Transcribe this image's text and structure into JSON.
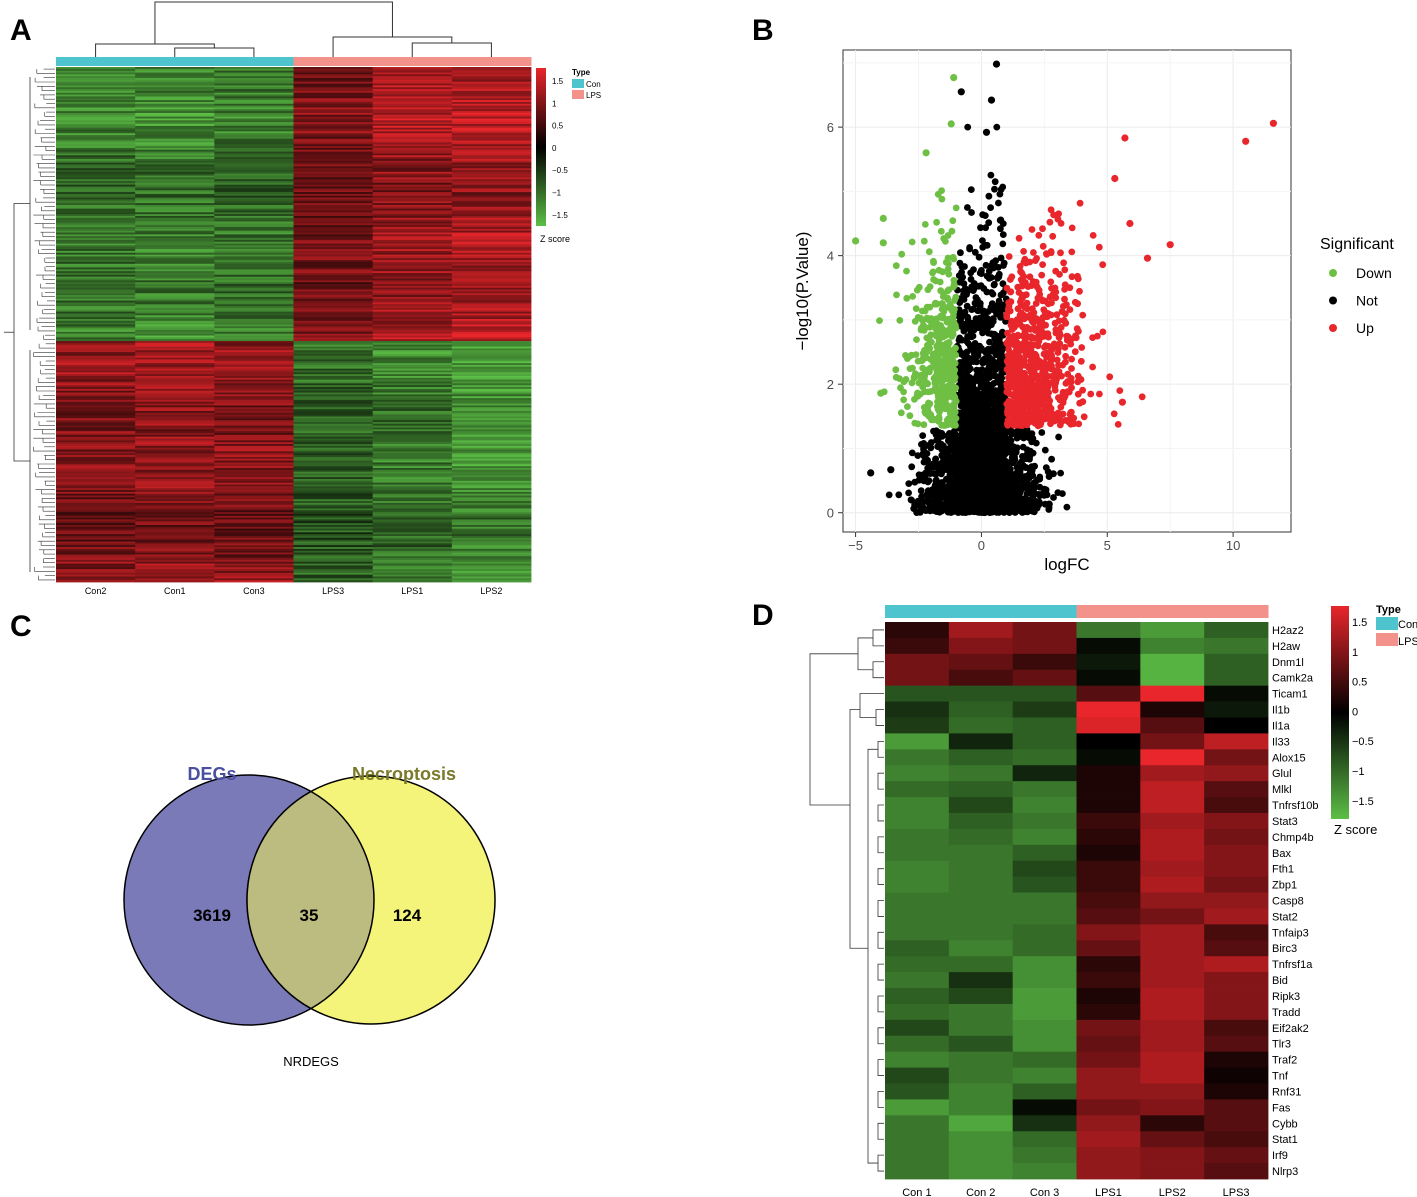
{
  "figure": {
    "panel_letters": [
      "A",
      "B",
      "C",
      "D"
    ]
  },
  "colors": {
    "con": "#4ec4cf",
    "lps": "#f2928a",
    "high": "#e8262b",
    "mid": "#000000",
    "low": "#5cbf46",
    "venn_left": "#7a7ab9",
    "venn_right": "#f4f47a",
    "venn_overlap": "#bcbb80",
    "degs_title": "#4a4fa0",
    "necro_title": "#7a7a2a",
    "down": "#6ebf44",
    "not": "#000000",
    "up": "#e8262b"
  },
  "chart_data": [
    {
      "panel": "A",
      "type": "heatmap",
      "columns": [
        "Con2",
        "Con1",
        "Con3",
        "LPS3",
        "LPS1",
        "LPS2"
      ],
      "column_groups": [
        "Con",
        "Con",
        "Con",
        "LPS",
        "LPS",
        "LPS"
      ],
      "row_blocks": [
        {
          "label": "up-regulated cluster",
          "pattern": [
            -1.1,
            -1.2,
            -1.1,
            0.9,
            1.2,
            1.3
          ]
        },
        {
          "label": "down-regulated cluster",
          "pattern": [
            1.0,
            1.1,
            1.0,
            -0.9,
            -1.1,
            -1.3
          ]
        }
      ],
      "legend": {
        "title": "Type",
        "entries": [
          "Con",
          "LPS"
        ],
        "scale_ticks": [
          "1.5",
          "1",
          "0.5",
          "0",
          "−0.5",
          "−1",
          "−1.5"
        ],
        "scale_title": "Z score"
      }
    },
    {
      "panel": "B",
      "type": "scatter",
      "xlabel": "logFC",
      "ylabel": "−log10(P.Value)",
      "xlim": [
        -5.5,
        12.3
      ],
      "ylim": [
        -0.3,
        7.2
      ],
      "xticks": [
        -5,
        0,
        5,
        10
      ],
      "yticks": [
        0,
        2,
        4,
        6
      ],
      "legend": {
        "title": "Significant",
        "entries": [
          "Down",
          "Not",
          "Up"
        ]
      },
      "grid": true,
      "highlight_points": [
        {
          "x": 11.6,
          "y": 6.06,
          "group": "Up"
        },
        {
          "x": 10.5,
          "y": 5.78,
          "group": "Up"
        },
        {
          "x": 5.7,
          "y": 5.83,
          "group": "Up"
        },
        {
          "x": 5.6,
          "y": 1.72,
          "group": "Up"
        },
        {
          "x": 7.5,
          "y": 4.17,
          "group": "Up"
        },
        {
          "x": 6.6,
          "y": 3.96,
          "group": "Up"
        },
        {
          "x": 5.9,
          "y": 4.5,
          "group": "Up"
        },
        {
          "x": 5.3,
          "y": 5.2,
          "group": "Up"
        },
        {
          "x": -5.0,
          "y": 4.23,
          "group": "Down"
        },
        {
          "x": -3.9,
          "y": 4.58,
          "group": "Down"
        },
        {
          "x": -3.9,
          "y": 4.2,
          "group": "Down"
        },
        {
          "x": -4.0,
          "y": 1.86,
          "group": "Down"
        },
        {
          "x": -2.2,
          "y": 5.6,
          "group": "Down"
        },
        {
          "x": -1.1,
          "y": 6.77,
          "group": "Down"
        },
        {
          "x": -1.2,
          "y": 6.05,
          "group": "Down"
        },
        {
          "x": 0.6,
          "y": 6.98,
          "group": "Not"
        },
        {
          "x": 0.4,
          "y": 6.42,
          "group": "Not"
        },
        {
          "x": -0.8,
          "y": 6.55,
          "group": "Not"
        },
        {
          "x": 0.2,
          "y": 5.92,
          "group": "Not"
        },
        {
          "x": -4.4,
          "y": 0.62,
          "group": "Not"
        },
        {
          "x": -3.6,
          "y": 0.67,
          "group": "Not"
        }
      ]
    },
    {
      "panel": "C",
      "type": "venn",
      "sets": [
        {
          "name": "DEGs",
          "only": 3619
        },
        {
          "name": "Necroptosis",
          "only": 124
        }
      ],
      "intersection": 35,
      "footer": "NRDEGS"
    },
    {
      "panel": "D",
      "type": "heatmap",
      "columns": [
        "Con 1",
        "Con 2",
        "Con 3",
        "LPS1",
        "LPS2",
        "LPS3"
      ],
      "column_groups": [
        "Con",
        "Con",
        "Con",
        "LPS",
        "LPS",
        "LPS"
      ],
      "rows": [
        {
          "gene": "H2az2",
          "values": [
            0.3,
            1.1,
            0.8,
            -1.0,
            -1.3,
            -0.8
          ]
        },
        {
          "gene": "H2aw",
          "values": [
            0.4,
            0.9,
            0.8,
            -0.1,
            -1.1,
            -1.0
          ]
        },
        {
          "gene": "Dnm1l",
          "values": [
            0.8,
            0.7,
            0.4,
            -0.2,
            -1.5,
            -0.8
          ]
        },
        {
          "gene": "Camk2a",
          "values": [
            0.8,
            0.5,
            0.7,
            -0.1,
            -1.5,
            -0.8
          ]
        },
        {
          "gene": "Ticam1",
          "values": [
            -0.7,
            -0.7,
            -0.7,
            0.6,
            1.6,
            -0.1
          ]
        },
        {
          "gene": "Il1b",
          "values": [
            -0.4,
            -0.8,
            -0.5,
            1.7,
            0.2,
            -0.2
          ]
        },
        {
          "gene": "Il1a",
          "values": [
            -0.5,
            -0.9,
            -0.8,
            1.5,
            0.6,
            0.0
          ]
        },
        {
          "gene": "Il33",
          "values": [
            -1.3,
            -0.3,
            -0.8,
            0.0,
            0.8,
            1.3
          ]
        },
        {
          "gene": "Alox15",
          "values": [
            -1.0,
            -0.8,
            -0.9,
            -0.1,
            1.6,
            0.8
          ]
        },
        {
          "gene": "Glul",
          "values": [
            -1.1,
            -1.0,
            -0.3,
            0.2,
            1.1,
            1.0
          ]
        },
        {
          "gene": "Mlkl",
          "values": [
            -0.9,
            -0.8,
            -1.0,
            0.2,
            1.3,
            0.6
          ]
        },
        {
          "gene": "Tnfrsf10b",
          "values": [
            -1.1,
            -0.6,
            -1.1,
            0.2,
            1.3,
            0.5
          ]
        },
        {
          "gene": "Stat3",
          "values": [
            -1.1,
            -0.8,
            -1.0,
            0.4,
            1.1,
            0.9
          ]
        },
        {
          "gene": "Chmp4b",
          "values": [
            -1.0,
            -0.9,
            -1.1,
            0.3,
            1.2,
            0.8
          ]
        },
        {
          "gene": "Bax",
          "values": [
            -1.0,
            -1.0,
            -0.8,
            0.2,
            1.2,
            0.9
          ]
        },
        {
          "gene": "Fth1",
          "values": [
            -1.1,
            -1.0,
            -0.6,
            0.4,
            1.1,
            0.9
          ]
        },
        {
          "gene": "Zbp1",
          "values": [
            -1.1,
            -1.0,
            -0.7,
            0.4,
            1.2,
            0.8
          ]
        },
        {
          "gene": "Casp8",
          "values": [
            -1.0,
            -1.0,
            -1.0,
            0.5,
            1.0,
            1.0
          ]
        },
        {
          "gene": "Stat2",
          "values": [
            -1.0,
            -1.0,
            -1.0,
            0.6,
            0.8,
            1.1
          ]
        },
        {
          "gene": "Tnfaip3",
          "values": [
            -1.0,
            -1.0,
            -0.9,
            0.9,
            1.1,
            0.5
          ]
        },
        {
          "gene": "Birc3",
          "values": [
            -0.8,
            -1.1,
            -0.9,
            0.7,
            1.1,
            0.6
          ]
        },
        {
          "gene": "Tnfrsf1a",
          "values": [
            -0.9,
            -0.9,
            -1.2,
            0.3,
            1.1,
            1.2
          ]
        },
        {
          "gene": "Bid",
          "values": [
            -1.0,
            -0.4,
            -1.2,
            0.4,
            1.1,
            0.9
          ]
        },
        {
          "gene": "Ripk3",
          "values": [
            -0.8,
            -0.6,
            -1.3,
            0.2,
            1.2,
            0.9
          ]
        },
        {
          "gene": "Tradd",
          "values": [
            -0.9,
            -1.0,
            -1.3,
            0.3,
            1.2,
            0.9
          ]
        },
        {
          "gene": "Eif2ak2",
          "values": [
            -0.6,
            -1.0,
            -1.2,
            0.8,
            1.1,
            0.5
          ]
        },
        {
          "gene": "Tlr3",
          "values": [
            -0.9,
            -0.7,
            -1.2,
            0.7,
            1.1,
            0.6
          ]
        },
        {
          "gene": "Traf2",
          "values": [
            -1.1,
            -1.0,
            -0.9,
            0.8,
            1.2,
            0.2
          ]
        },
        {
          "gene": "Tnf",
          "values": [
            -0.6,
            -1.0,
            -1.1,
            1.0,
            1.2,
            0.1
          ]
        },
        {
          "gene": "Rnf31",
          "values": [
            -0.7,
            -1.1,
            -0.8,
            1.0,
            1.0,
            0.2
          ]
        },
        {
          "gene": "Fas",
          "values": [
            -1.3,
            -1.1,
            -0.1,
            0.8,
            0.9,
            0.6
          ]
        },
        {
          "gene": "Cybb",
          "values": [
            -1.0,
            -1.4,
            -0.4,
            1.0,
            0.3,
            0.6
          ]
        },
        {
          "gene": "Stat1",
          "values": [
            -1.0,
            -1.2,
            -0.9,
            1.1,
            0.7,
            0.5
          ]
        },
        {
          "gene": "Irf9",
          "values": [
            -1.0,
            -1.2,
            -1.0,
            1.0,
            0.9,
            0.7
          ]
        },
        {
          "gene": "Nlrp3",
          "values": [
            -1.0,
            -1.2,
            -1.1,
            1.0,
            0.9,
            0.6
          ]
        }
      ],
      "legend": {
        "title": "Type",
        "entries": [
          "Con",
          "LPS"
        ],
        "scale_ticks": [
          "1.5",
          "1",
          "0.5",
          "0",
          "−0.5",
          "−1",
          "−1.5"
        ],
        "scale_title": "Z score"
      }
    }
  ]
}
